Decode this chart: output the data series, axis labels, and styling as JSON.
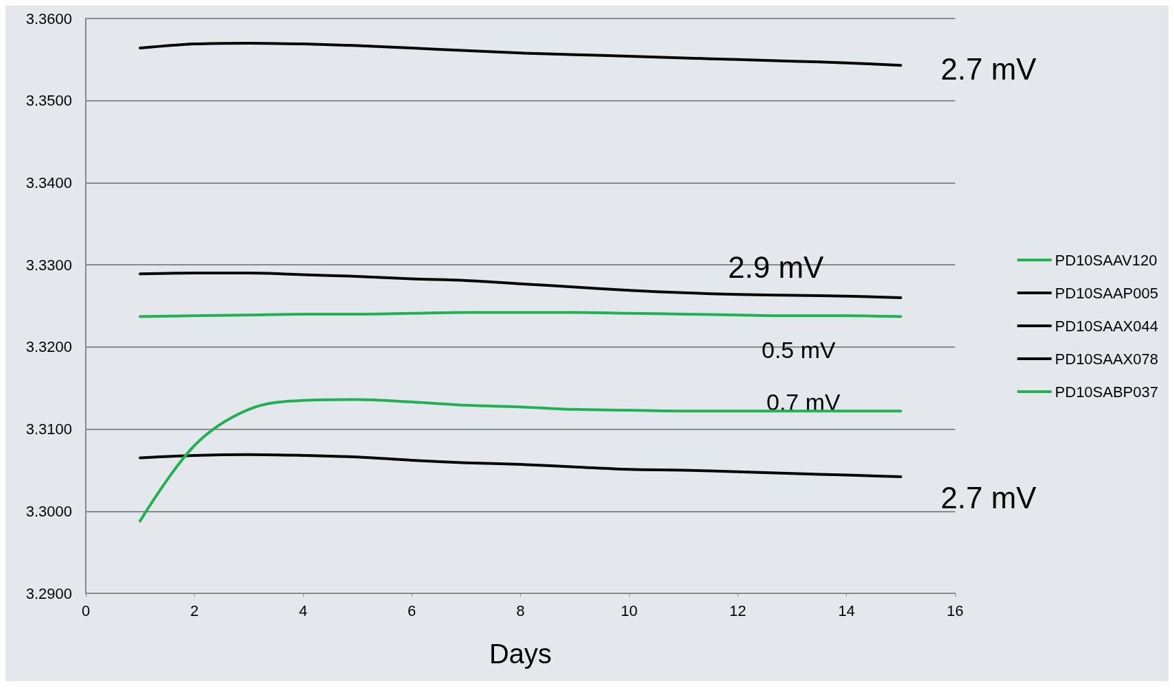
{
  "chart_data": {
    "type": "line",
    "xlabel": "Days",
    "x": [
      1,
      2,
      3,
      4,
      5,
      6,
      7,
      8,
      9,
      10,
      11,
      12,
      13,
      14,
      15
    ],
    "series": [
      {
        "name": "PD10SAAV120",
        "color": "#1db350",
        "values": [
          3.3237,
          3.3238,
          3.3239,
          3.324,
          3.324,
          3.3241,
          3.3242,
          3.3242,
          3.3242,
          3.3241,
          3.324,
          3.3239,
          3.3238,
          3.3238,
          3.3237
        ]
      },
      {
        "name": "PD10SAAP005",
        "color": "#000000",
        "values": [
          3.3564,
          3.3569,
          3.357,
          3.3569,
          3.3567,
          3.3564,
          3.3561,
          3.3558,
          3.3556,
          3.3554,
          3.3552,
          3.355,
          3.3548,
          3.3546,
          3.3543
        ]
      },
      {
        "name": "PD10SAAX044",
        "color": "#000000",
        "values": [
          3.3289,
          3.329,
          3.329,
          3.3288,
          3.3286,
          3.3283,
          3.3281,
          3.3277,
          3.3273,
          3.3269,
          3.3266,
          3.3264,
          3.3263,
          3.3262,
          3.326
        ]
      },
      {
        "name": "PD10SAAX078",
        "color": "#000000",
        "values": [
          3.3065,
          3.3068,
          3.3069,
          3.3068,
          3.3066,
          3.3062,
          3.3059,
          3.3057,
          3.3054,
          3.3051,
          3.305,
          3.3048,
          3.3046,
          3.3044,
          3.3042
        ]
      },
      {
        "name": "PD10SABP037",
        "color": "#1db350",
        "values": [
          3.2988,
          3.308,
          3.3124,
          3.3135,
          3.3136,
          3.3133,
          3.3129,
          3.3127,
          3.3124,
          3.3123,
          3.3122,
          3.3122,
          3.3122,
          3.3122,
          3.3122
        ]
      }
    ],
    "xlim": [
      0,
      16
    ],
    "xticks": [
      0,
      2,
      4,
      6,
      8,
      10,
      12,
      14,
      16
    ],
    "ylim": [
      3.29,
      3.36
    ],
    "yticks": [
      {
        "value": 3.29,
        "label": "3.2900"
      },
      {
        "value": 3.3,
        "label": "3.3000"
      },
      {
        "value": 3.31,
        "label": "3.3100"
      },
      {
        "value": 3.32,
        "label": "3.3200"
      },
      {
        "value": 3.33,
        "label": "3.3300"
      },
      {
        "value": 3.34,
        "label": "3.3400"
      },
      {
        "value": 3.35,
        "label": "3.3500"
      },
      {
        "value": 3.36,
        "label": "3.3600"
      }
    ],
    "grid": "y",
    "legend": "right",
    "marker": "none",
    "line_style": "solid",
    "annotations": [
      "2.7 mV",
      "2.9 mV",
      "0.5 mV",
      "0.7 mV",
      "2.7 mV"
    ]
  }
}
